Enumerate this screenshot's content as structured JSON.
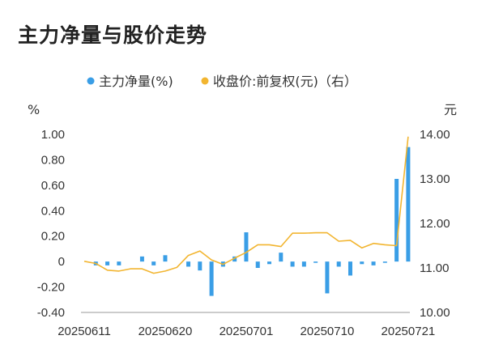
{
  "title": "主力净量与股价走势",
  "colors": {
    "bar": "#3a9ee6",
    "line": "#f2b530",
    "axis": "#999999"
  },
  "chart_data": {
    "type": "bar+line",
    "legend": [
      {
        "label": "主力净量(%)",
        "color": "#3a9ee6",
        "marker": "dot"
      },
      {
        "label": "收盘价:前复权(元)（右）",
        "color": "#f2b530",
        "marker": "dot"
      }
    ],
    "left_axis": {
      "unit": "%",
      "ticks": [
        "1.00",
        "0.80",
        "0.60",
        "0.40",
        "0.20",
        "0",
        "-0.20",
        "-0.40"
      ],
      "min": -0.4,
      "max": 1.0
    },
    "right_axis": {
      "unit": "元",
      "ticks": [
        "14.00",
        "13.00",
        "12.00",
        "11.00",
        "10.00"
      ],
      "min": 10.0,
      "max": 14.0
    },
    "x_tick_labels": [
      "20250611",
      "20250620",
      "20250701",
      "20250710",
      "20250721"
    ],
    "x_tick_index": [
      0,
      7,
      14,
      21,
      28
    ],
    "n_points": 29,
    "series": [
      {
        "name": "主力净量(%)",
        "type": "bar",
        "values": [
          0.0,
          -0.03,
          -0.03,
          -0.03,
          0.0,
          0.04,
          -0.03,
          0.05,
          0.0,
          -0.04,
          -0.07,
          -0.27,
          -0.04,
          0.04,
          0.23,
          -0.05,
          -0.02,
          0.07,
          -0.04,
          -0.04,
          -0.01,
          -0.25,
          -0.04,
          -0.11,
          -0.02,
          -0.03,
          -0.01,
          0.65,
          0.9
        ]
      },
      {
        "name": "收盘价:前复权(元)（右）",
        "type": "line",
        "values": [
          11.15,
          11.1,
          10.95,
          10.93,
          10.98,
          10.98,
          10.88,
          10.93,
          11.01,
          11.28,
          11.38,
          11.18,
          11.08,
          11.22,
          11.35,
          11.52,
          11.52,
          11.48,
          11.78,
          11.78,
          11.79,
          11.79,
          11.6,
          11.62,
          11.45,
          11.55,
          11.52,
          11.5,
          13.95
        ]
      }
    ]
  }
}
